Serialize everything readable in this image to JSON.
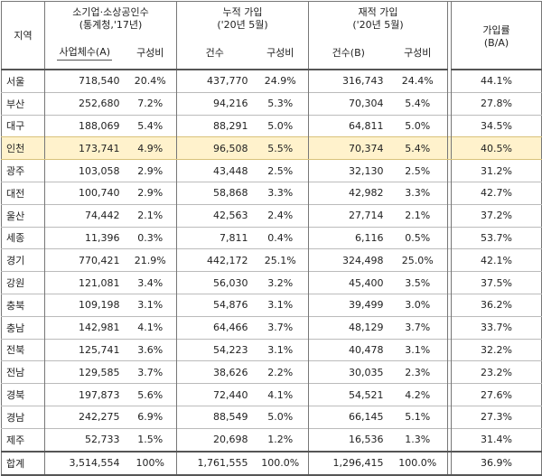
{
  "headers": {
    "region": "지역",
    "group1_title_line1": "소기업·소상공인수",
    "group1_title_line2": "(통계청,'17년)",
    "group1_col1": "사업체수(A)",
    "group1_col2": "구성비",
    "group2_title_line1": "누적 가입",
    "group2_title_line2": "('20년 5월)",
    "group2_col1": "건수",
    "group2_col2": "구성비",
    "group3_title_line1": "재적 가입",
    "group3_title_line2": "('20년 5월)",
    "group3_col1": "건수(B)",
    "group3_col2": "구성비",
    "rate_line1": "가입률",
    "rate_line2": "(B/A)"
  },
  "rows": [
    {
      "region": "서울",
      "biz_count": "718,540",
      "biz_share": "20.4%",
      "cum_count": "437,770",
      "cum_share": "24.9%",
      "reg_count": "316,743",
      "reg_share": "24.4%",
      "rate": "44.1%"
    },
    {
      "region": "부산",
      "biz_count": "252,680",
      "biz_share": "7.2%",
      "cum_count": "94,216",
      "cum_share": "5.3%",
      "reg_count": "70,304",
      "reg_share": "5.4%",
      "rate": "27.8%"
    },
    {
      "region": "대구",
      "biz_count": "188,069",
      "biz_share": "5.4%",
      "cum_count": "88,291",
      "cum_share": "5.0%",
      "reg_count": "64,811",
      "reg_share": "5.0%",
      "rate": "34.5%"
    },
    {
      "region": "인천",
      "biz_count": "173,741",
      "biz_share": "4.9%",
      "cum_count": "96,508",
      "cum_share": "5.5%",
      "reg_count": "70,374",
      "reg_share": "5.4%",
      "rate": "40.5%",
      "highlight": true
    },
    {
      "region": "광주",
      "biz_count": "103,058",
      "biz_share": "2.9%",
      "cum_count": "43,448",
      "cum_share": "2.5%",
      "reg_count": "32,130",
      "reg_share": "2.5%",
      "rate": "31.2%"
    },
    {
      "region": "대전",
      "biz_count": "100,740",
      "biz_share": "2.9%",
      "cum_count": "58,868",
      "cum_share": "3.3%",
      "reg_count": "42,982",
      "reg_share": "3.3%",
      "rate": "42.7%"
    },
    {
      "region": "울산",
      "biz_count": "74,442",
      "biz_share": "2.1%",
      "cum_count": "42,563",
      "cum_share": "2.4%",
      "reg_count": "27,714",
      "reg_share": "2.1%",
      "rate": "37.2%"
    },
    {
      "region": "세종",
      "biz_count": "11,396",
      "biz_share": "0.3%",
      "cum_count": "7,811",
      "cum_share": "0.4%",
      "reg_count": "6,116",
      "reg_share": "0.5%",
      "rate": "53.7%"
    },
    {
      "region": "경기",
      "biz_count": "770,421",
      "biz_share": "21.9%",
      "cum_count": "442,172",
      "cum_share": "25.1%",
      "reg_count": "324,498",
      "reg_share": "25.0%",
      "rate": "42.1%"
    },
    {
      "region": "강원",
      "biz_count": "121,081",
      "biz_share": "3.4%",
      "cum_count": "56,030",
      "cum_share": "3.2%",
      "reg_count": "45,400",
      "reg_share": "3.5%",
      "rate": "37.5%"
    },
    {
      "region": "충북",
      "biz_count": "109,198",
      "biz_share": "3.1%",
      "cum_count": "54,876",
      "cum_share": "3.1%",
      "reg_count": "39,499",
      "reg_share": "3.0%",
      "rate": "36.2%"
    },
    {
      "region": "충남",
      "biz_count": "142,981",
      "biz_share": "4.1%",
      "cum_count": "64,466",
      "cum_share": "3.7%",
      "reg_count": "48,129",
      "reg_share": "3.7%",
      "rate": "33.7%"
    },
    {
      "region": "전북",
      "biz_count": "125,741",
      "biz_share": "3.6%",
      "cum_count": "54,223",
      "cum_share": "3.1%",
      "reg_count": "40,478",
      "reg_share": "3.1%",
      "rate": "32.2%"
    },
    {
      "region": "전남",
      "biz_count": "129,585",
      "biz_share": "3.7%",
      "cum_count": "38,626",
      "cum_share": "2.2%",
      "reg_count": "30,035",
      "reg_share": "2.3%",
      "rate": "23.2%"
    },
    {
      "region": "경북",
      "biz_count": "197,873",
      "biz_share": "5.6%",
      "cum_count": "72,440",
      "cum_share": "4.1%",
      "reg_count": "54,521",
      "reg_share": "4.2%",
      "rate": "27.6%"
    },
    {
      "region": "경남",
      "biz_count": "242,275",
      "biz_share": "6.9%",
      "cum_count": "88,549",
      "cum_share": "5.0%",
      "reg_count": "66,145",
      "reg_share": "5.1%",
      "rate": "27.3%"
    },
    {
      "region": "제주",
      "biz_count": "52,733",
      "biz_share": "1.5%",
      "cum_count": "20,698",
      "cum_share": "1.2%",
      "reg_count": "16,536",
      "reg_share": "1.3%",
      "rate": "31.4%"
    }
  ],
  "total": {
    "region": "합계",
    "biz_count": "3,514,554",
    "biz_share": "100%",
    "cum_count": "1,761,555",
    "cum_share": "100.0%",
    "reg_count": "1,296,415",
    "reg_share": "100.0%",
    "rate": "36.9%"
  },
  "colors": {
    "highlight_bg": "#fff2cc",
    "border": "#777777"
  }
}
